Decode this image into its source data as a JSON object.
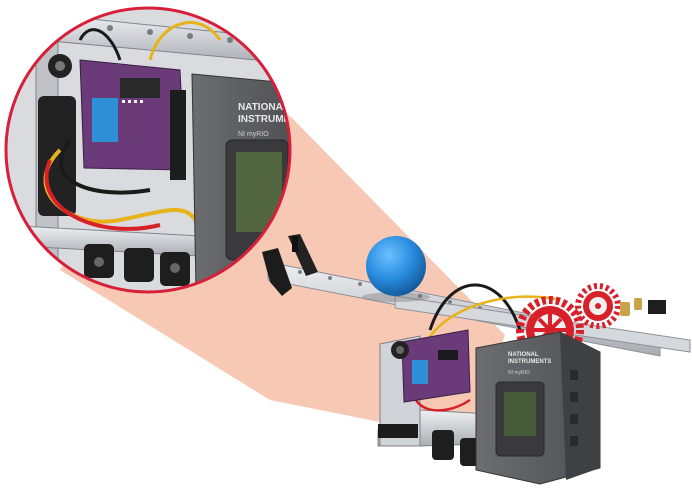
{
  "image": {
    "subject": "robot-chassis-with-magnified-inset",
    "colors": {
      "background": "#ffffff",
      "zoom_wedge": "#f6c0a8",
      "inset_ring": "#d71f3a",
      "controller_body": "#5f6063",
      "circuit_board": "#6a3b78",
      "ball": "#2a8ee0",
      "gear": "#d8202a",
      "rail": "#c9ccd1",
      "motor": "#1e1e1e"
    }
  },
  "controller": {
    "brand_line1": "NATIONAL",
    "brand_line2": "INSTRUMENTS",
    "model": "NI myRIO"
  }
}
